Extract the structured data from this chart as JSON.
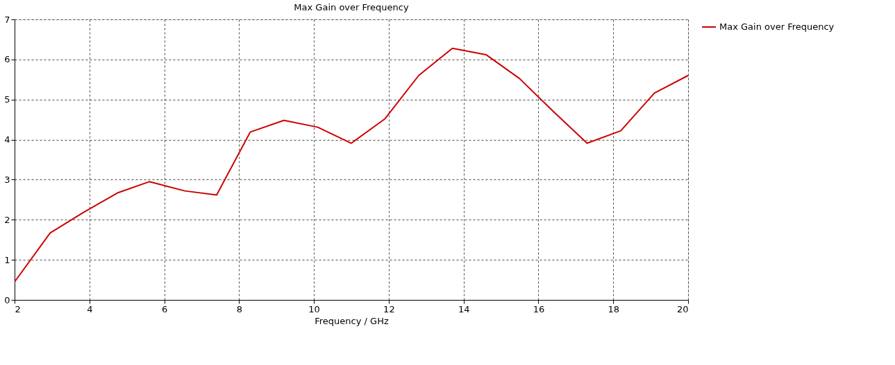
{
  "chart_data": {
    "type": "line",
    "title": "Max Gain over Frequency",
    "xlabel": "Frequency / GHz",
    "x": [
      2,
      2.95,
      3.85,
      4.75,
      5.6,
      6.55,
      7.4,
      8.3,
      9.2,
      10.1,
      11,
      11.9,
      12.8,
      13.7,
      14.6,
      15.5,
      16.4,
      17.3,
      18.2,
      19.1,
      20
    ],
    "series": [
      {
        "name": "Max Gain over Frequency",
        "color": "#cc0000",
        "values": [
          0.45,
          1.67,
          2.19,
          2.67,
          2.95,
          2.72,
          2.62,
          4.19,
          4.48,
          4.31,
          3.91,
          4.52,
          5.6,
          6.28,
          6.12,
          5.52,
          4.7,
          3.91,
          4.22,
          5.16,
          5.6
        ]
      }
    ],
    "xlim": [
      2,
      20
    ],
    "xticks": [
      2,
      4,
      6,
      8,
      10,
      12,
      14,
      16,
      18,
      20
    ],
    "ylim": [
      0,
      7
    ],
    "yticks": [
      0,
      1,
      2,
      3,
      4,
      5,
      6,
      7
    ],
    "grid": true,
    "legend": "top right",
    "marker": "none",
    "line_style": "solid"
  }
}
